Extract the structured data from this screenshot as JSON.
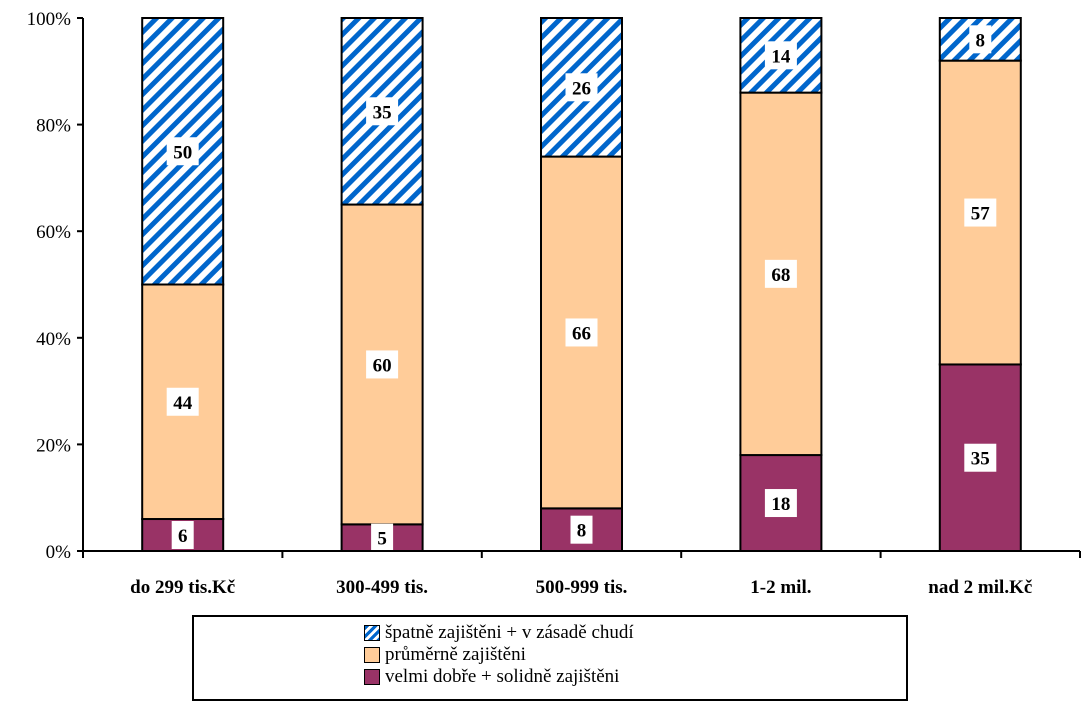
{
  "chart_data": {
    "type": "bar",
    "stacked": true,
    "categories": [
      "do 299 tis.Kč",
      "300-499 tis.",
      "500-999 tis.",
      "1-2 mil.",
      "nad 2 mil.Kč"
    ],
    "series": [
      {
        "name": "velmi dobře + solidně zajištěni",
        "values": [
          6,
          5,
          8,
          18,
          35
        ],
        "color": "#993366",
        "pattern": "solid"
      },
      {
        "name": "průměrně zajištěni",
        "values": [
          44,
          60,
          66,
          68,
          57
        ],
        "color": "#ffcc99",
        "pattern": "solid"
      },
      {
        "name": "špatně zajištěni + v zásadě chudí",
        "values": [
          50,
          35,
          26,
          14,
          8
        ],
        "color": "#0066cc",
        "pattern": "diagonal-stripes"
      }
    ],
    "y_ticks": [
      "0%",
      "20%",
      "40%",
      "60%",
      "80%",
      "100%"
    ],
    "ylim": [
      0,
      100
    ],
    "grid": false,
    "legend_position": "bottom"
  }
}
